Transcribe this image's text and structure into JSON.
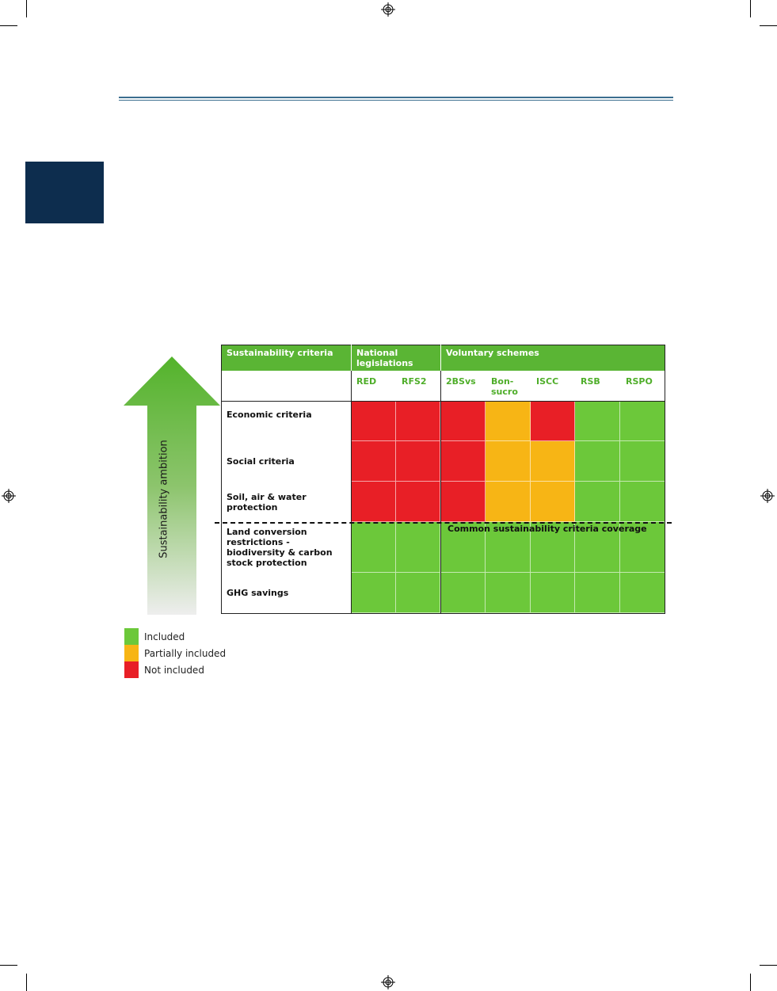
{
  "figure": {
    "arrow_label": "Sustainability ambition",
    "header": {
      "criteria": "Sustainability criteria",
      "national": "National legislations",
      "voluntary": "Voluntary schemes"
    },
    "columns": [
      "RED",
      "RFS2",
      "2BSvs",
      "Bon-\nsucro",
      "ISCC",
      "RSB",
      "RSPO"
    ],
    "rows": [
      "Economic criteria",
      "Social criteria",
      "Soil, air & water\nprotection",
      "Land conversion\nrestrictions -\nbiodiversity & carbon\nstock protection",
      "GHG savings"
    ],
    "status": [
      [
        "not",
        "not",
        "not",
        "partial",
        "not",
        "included",
        "included"
      ],
      [
        "not",
        "not",
        "not",
        "partial",
        "partial",
        "included",
        "included"
      ],
      [
        "not",
        "not",
        "not",
        "partial",
        "partial",
        "included",
        "included"
      ],
      [
        "included",
        "included",
        "included",
        "included",
        "included",
        "included",
        "included"
      ],
      [
        "included",
        "included",
        "included",
        "included",
        "included",
        "included",
        "included"
      ]
    ],
    "common_label": "Common sustainability criteria coverage",
    "colors": {
      "included": "#6cc83a",
      "partial": "#f7b515",
      "not": "#e81f26",
      "header": "#5ab534",
      "column_label": "#4fae2a"
    }
  },
  "legend": [
    {
      "label": "Included",
      "status": "included"
    },
    {
      "label": "Partially included",
      "status": "partial"
    },
    {
      "label": "Not included",
      "status": "not"
    }
  ]
}
